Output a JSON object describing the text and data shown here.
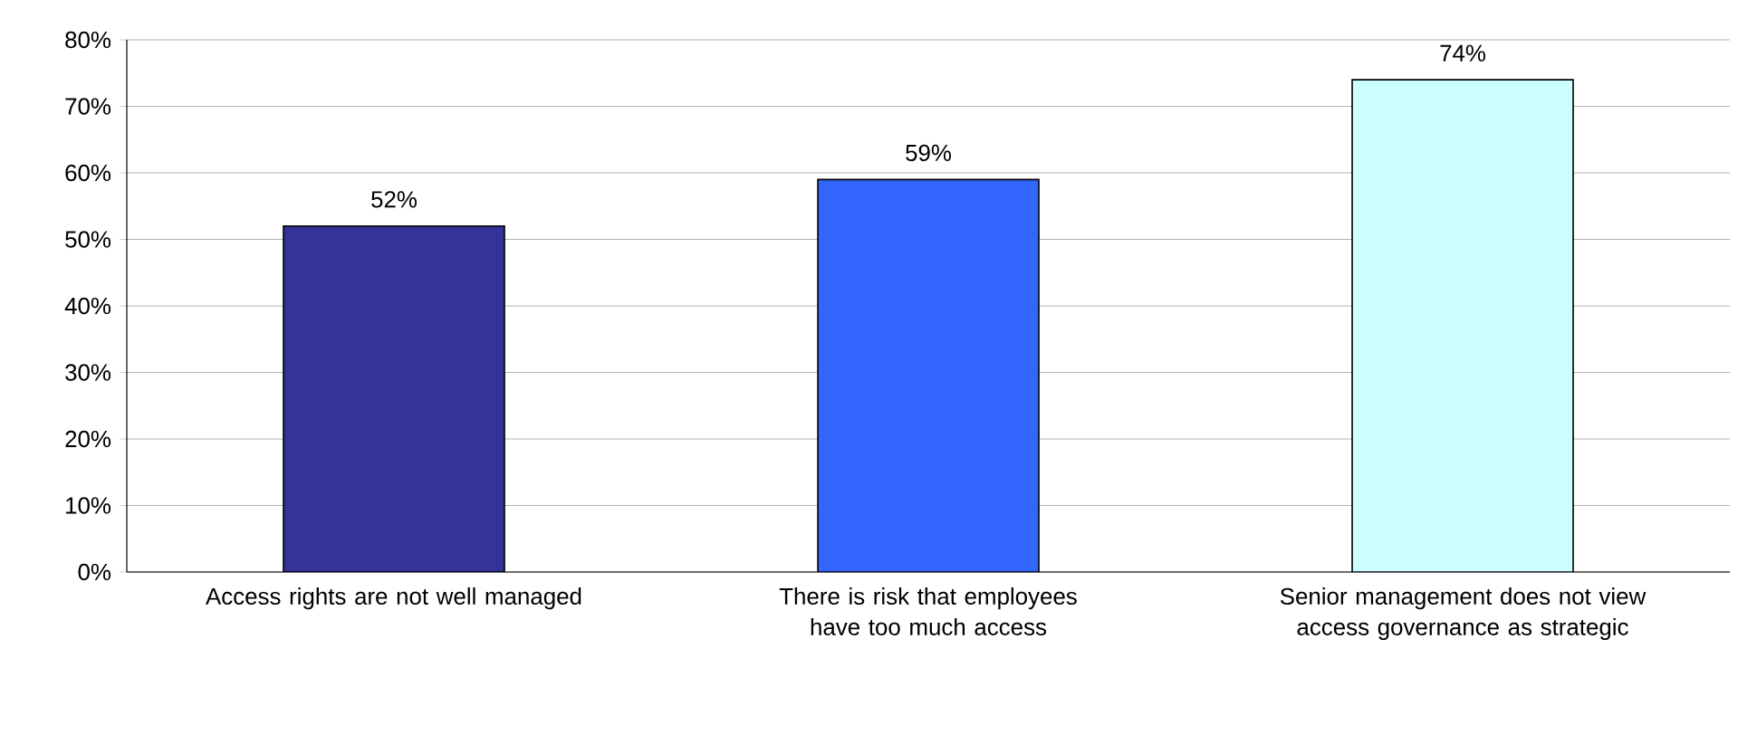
{
  "chart_data": {
    "type": "bar",
    "categories": [
      "Access rights are not well managed",
      "There is risk that employees have too much access",
      "Senior management does not view access governance as strategic"
    ],
    "values": [
      52,
      59,
      74
    ],
    "colors": [
      "#333399",
      "#3366ff",
      "#ccffff"
    ],
    "value_labels": [
      "52%",
      "59%",
      "74%"
    ],
    "ylim": [
      0,
      80
    ],
    "yticks": [
      {
        "value": 0,
        "label": "0%"
      },
      {
        "value": 10,
        "label": "10%"
      },
      {
        "value": 20,
        "label": "20%"
      },
      {
        "value": 30,
        "label": "30%"
      },
      {
        "value": 40,
        "label": "40%"
      },
      {
        "value": 50,
        "label": "50%"
      },
      {
        "value": 60,
        "label": "60%"
      },
      {
        "value": 70,
        "label": "70%"
      },
      {
        "value": 80,
        "label": "80%"
      }
    ],
    "grid": "y"
  }
}
